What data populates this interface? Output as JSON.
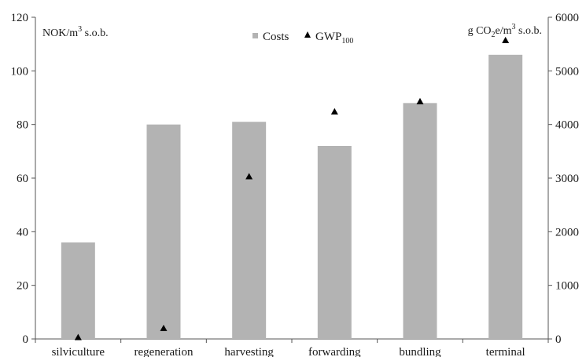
{
  "chart_data": {
    "type": "bar",
    "categories": [
      "silviculture",
      "regeneration",
      "harvesting",
      "forwarding",
      "bundling",
      "terminal"
    ],
    "series": [
      {
        "name": "Costs",
        "type": "bar",
        "axis": "left",
        "values": [
          36,
          80,
          81,
          72,
          88,
          106
        ],
        "color": "#b3b3b3"
      },
      {
        "name": "GWP100",
        "type": "scatter",
        "marker": "triangle",
        "axis": "right",
        "values": [
          30,
          200,
          3030,
          4240,
          4430,
          5570
        ],
        "color": "#000000"
      }
    ],
    "y_left": {
      "unit_label": "NOK/m3 s.o.b.",
      "ylim": [
        0,
        120
      ],
      "ticks": [
        "0",
        "20",
        "40",
        "60",
        "80",
        "100",
        "120"
      ]
    },
    "y_right": {
      "unit_label": "g CO2e/m3 s.o.b.",
      "ylim": [
        0,
        6000
      ],
      "ticks": [
        "0",
        "1000",
        "2000",
        "3000",
        "4000",
        "5000",
        "6000"
      ]
    },
    "legend": {
      "position": "top-center",
      "costs_label": "Costs",
      "gwp_label_main": "GWP",
      "gwp_label_sub": "100"
    },
    "left_unit": {
      "main": "NOK/m",
      "sup": "3",
      "rest": " s.o.b."
    },
    "right_unit": {
      "main": "g CO",
      "sub": "2",
      "mid": "e/m",
      "sup": "3",
      "rest": " s.o.b."
    },
    "grid": false
  }
}
